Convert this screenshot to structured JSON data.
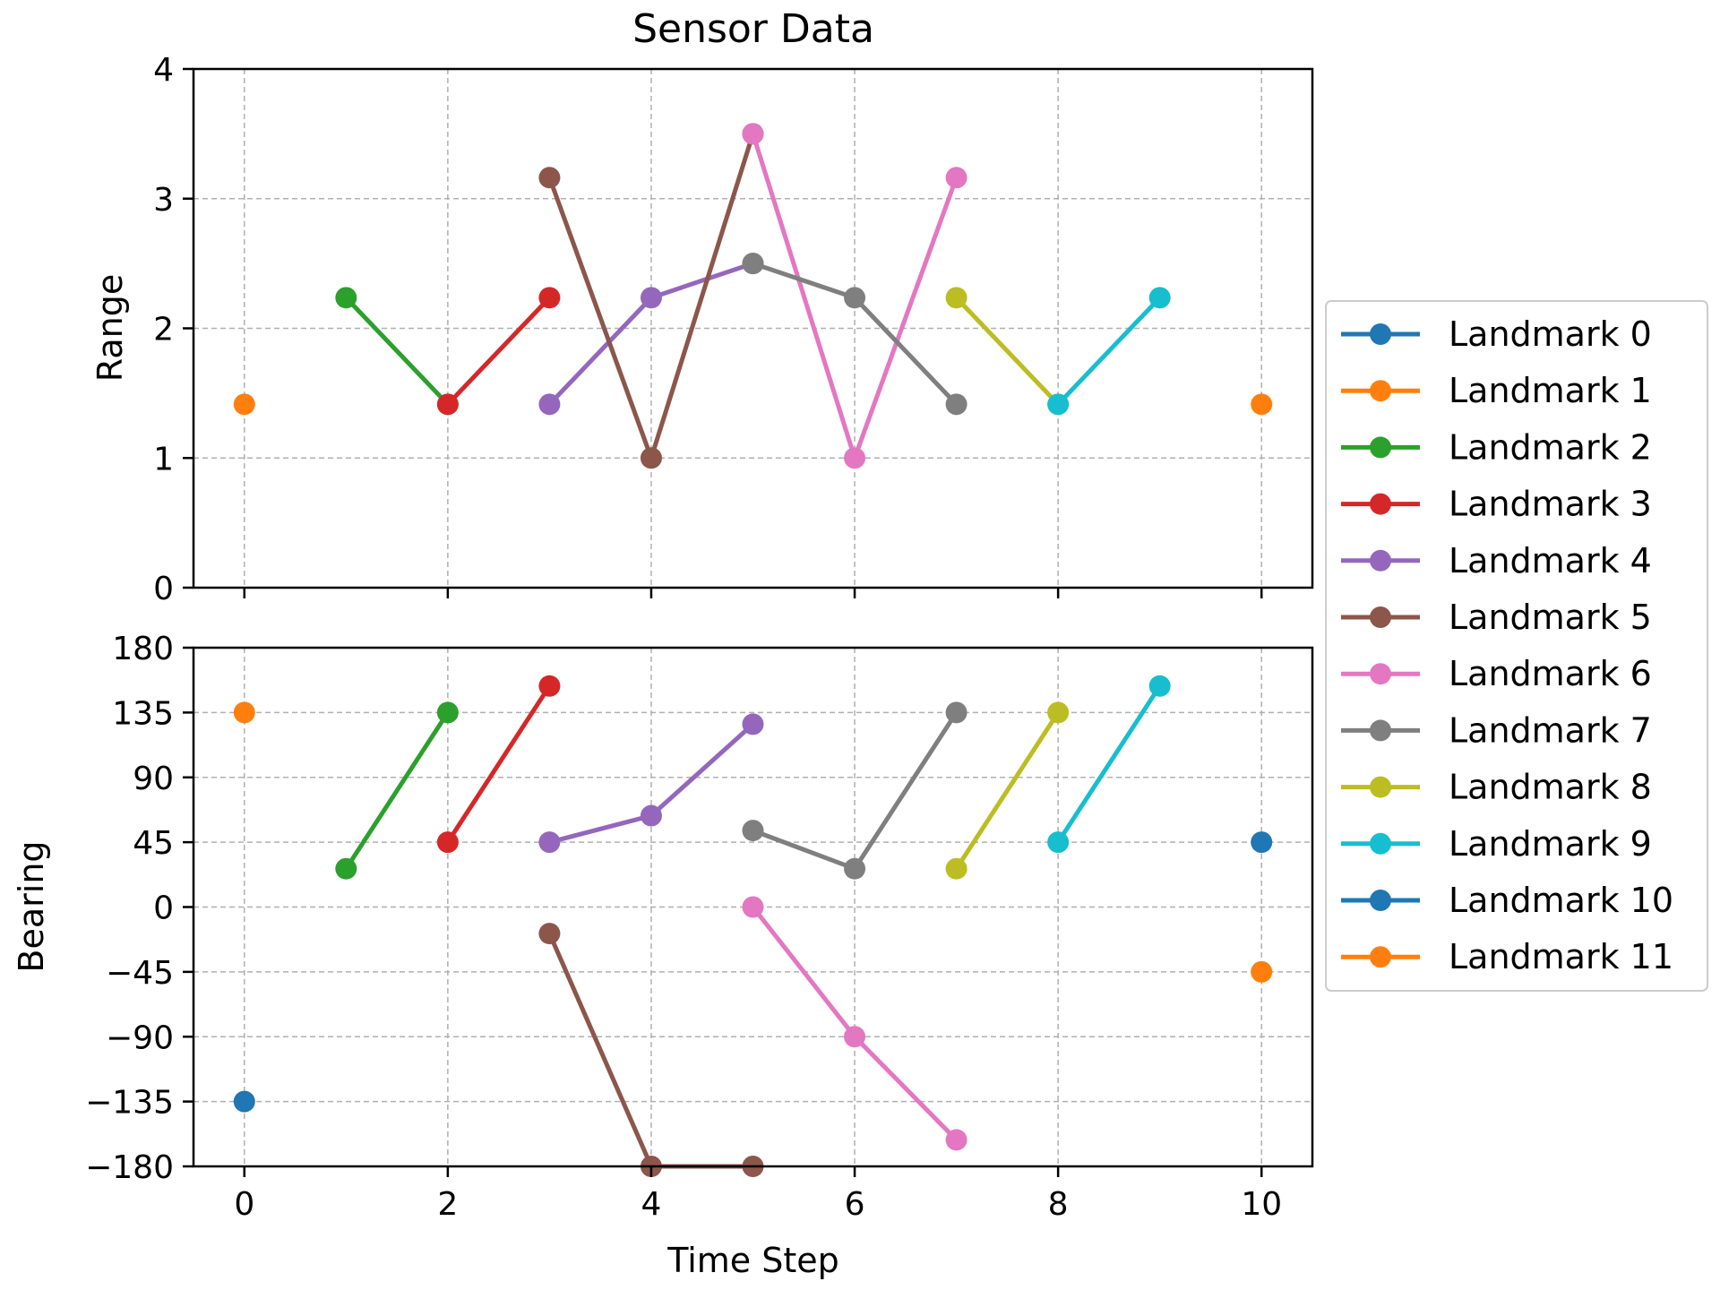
{
  "figure": {
    "title": "Sensor Data"
  },
  "chart_data": [
    {
      "type": "line",
      "panel": "top",
      "ylabel": "Range",
      "xlabel": "",
      "xlim": [
        -0.5,
        10.5
      ],
      "ylim": [
        0,
        4
      ],
      "xticks": [
        0,
        2,
        4,
        6,
        8,
        10
      ],
      "yticks": [
        0,
        1,
        2,
        3,
        4
      ],
      "ytick_labels": [
        "0",
        "1",
        "2",
        "3",
        "4"
      ],
      "show_xtick_labels": false,
      "grid": true,
      "series": [
        {
          "name": "Landmark 0",
          "color": "#1f77b4",
          "x": [],
          "y": []
        },
        {
          "name": "Landmark 1",
          "color": "#ff7f0e",
          "x": [
            0
          ],
          "y": [
            1.414
          ]
        },
        {
          "name": "Landmark 2",
          "color": "#2ca02c",
          "x": [
            1,
            2
          ],
          "y": [
            2.236,
            1.414
          ]
        },
        {
          "name": "Landmark 3",
          "color": "#d62728",
          "x": [
            2,
            3
          ],
          "y": [
            1.414,
            2.236
          ]
        },
        {
          "name": "Landmark 4",
          "color": "#9467bd",
          "x": [
            3,
            4,
            5
          ],
          "y": [
            1.414,
            2.236,
            2.5
          ]
        },
        {
          "name": "Landmark 5",
          "color": "#8c564b",
          "x": [
            3,
            4,
            5
          ],
          "y": [
            3.162,
            1.0,
            3.5
          ]
        },
        {
          "name": "Landmark 6",
          "color": "#e377c2",
          "x": [
            5,
            6,
            7
          ],
          "y": [
            3.5,
            1.0,
            3.162
          ]
        },
        {
          "name": "Landmark 7",
          "color": "#7f7f7f",
          "x": [
            5,
            6,
            7
          ],
          "y": [
            2.5,
            2.236,
            1.414
          ]
        },
        {
          "name": "Landmark 8",
          "color": "#bcbd22",
          "x": [
            7,
            8
          ],
          "y": [
            2.236,
            1.414
          ]
        },
        {
          "name": "Landmark 9",
          "color": "#17becf",
          "x": [
            8,
            9
          ],
          "y": [
            1.414,
            2.236
          ]
        },
        {
          "name": "Landmark 10",
          "color": "#1f77b4",
          "x": [],
          "y": []
        },
        {
          "name": "Landmark 11",
          "color": "#ff7f0e",
          "x": [
            10
          ],
          "y": [
            1.414
          ]
        }
      ]
    },
    {
      "type": "line",
      "panel": "bottom",
      "ylabel": "Bearing",
      "xlabel": "Time Step",
      "xlim": [
        -0.5,
        10.5
      ],
      "ylim": [
        -180,
        180
      ],
      "xticks": [
        0,
        2,
        4,
        6,
        8,
        10
      ],
      "xtick_labels": [
        "0",
        "2",
        "4",
        "6",
        "8",
        "10"
      ],
      "yticks": [
        -180,
        -135,
        -90,
        -45,
        0,
        45,
        90,
        135,
        180
      ],
      "ytick_labels": [
        "−180",
        "−135",
        "−90",
        "−45",
        "0",
        "45",
        "90",
        "135",
        "180"
      ],
      "show_xtick_labels": true,
      "grid": true,
      "series": [
        {
          "name": "Landmark 0",
          "color": "#1f77b4",
          "x": [
            0
          ],
          "y": [
            -135
          ]
        },
        {
          "name": "Landmark 1",
          "color": "#ff7f0e",
          "x": [
            0
          ],
          "y": [
            135
          ]
        },
        {
          "name": "Landmark 2",
          "color": "#2ca02c",
          "x": [
            1,
            2
          ],
          "y": [
            26.6,
            135
          ]
        },
        {
          "name": "Landmark 3",
          "color": "#d62728",
          "x": [
            2,
            3
          ],
          "y": [
            45,
            153.4
          ]
        },
        {
          "name": "Landmark 4",
          "color": "#9467bd",
          "x": [
            3,
            4,
            5
          ],
          "y": [
            45,
            63.4,
            126.9
          ]
        },
        {
          "name": "Landmark 5",
          "color": "#8c564b",
          "x": [
            3,
            4,
            5
          ],
          "y": [
            -18.4,
            -180,
            -180
          ]
        },
        {
          "name": "Landmark 6",
          "color": "#e377c2",
          "x": [
            5,
            6,
            7
          ],
          "y": [
            0,
            -90,
            -161.6
          ]
        },
        {
          "name": "Landmark 7",
          "color": "#7f7f7f",
          "x": [
            5,
            6,
            7
          ],
          "y": [
            53.1,
            26.6,
            135
          ]
        },
        {
          "name": "Landmark 8",
          "color": "#bcbd22",
          "x": [
            7,
            8
          ],
          "y": [
            26.6,
            135
          ]
        },
        {
          "name": "Landmark 9",
          "color": "#17becf",
          "x": [
            8,
            9
          ],
          "y": [
            45,
            153.4
          ]
        },
        {
          "name": "Landmark 10",
          "color": "#1f77b4",
          "x": [
            10
          ],
          "y": [
            45
          ]
        },
        {
          "name": "Landmark 11",
          "color": "#ff7f0e",
          "x": [
            10
          ],
          "y": [
            -45
          ]
        }
      ]
    }
  ],
  "legend": {
    "placement": "center-right outside",
    "entries": [
      {
        "label": "Landmark 0",
        "color": "#1f77b4"
      },
      {
        "label": "Landmark 1",
        "color": "#ff7f0e"
      },
      {
        "label": "Landmark 2",
        "color": "#2ca02c"
      },
      {
        "label": "Landmark 3",
        "color": "#d62728"
      },
      {
        "label": "Landmark 4",
        "color": "#9467bd"
      },
      {
        "label": "Landmark 5",
        "color": "#8c564b"
      },
      {
        "label": "Landmark 6",
        "color": "#e377c2"
      },
      {
        "label": "Landmark 7",
        "color": "#7f7f7f"
      },
      {
        "label": "Landmark 8",
        "color": "#bcbd22"
      },
      {
        "label": "Landmark 9",
        "color": "#17becf"
      },
      {
        "label": "Landmark 10",
        "color": "#1f77b4"
      },
      {
        "label": "Landmark 11",
        "color": "#ff7f0e"
      }
    ]
  }
}
